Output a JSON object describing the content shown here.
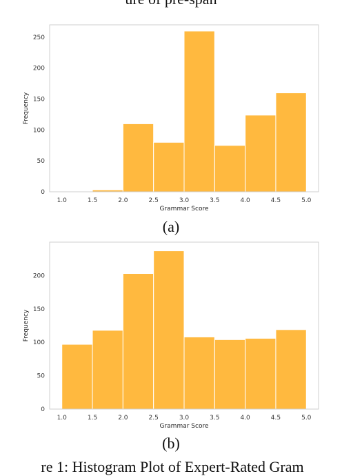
{
  "header_text": "ure of pre-span",
  "figure_caption": "re 1:  Histogram Plot of Expert-Rated Gram",
  "bar_color": "#FFB93F",
  "chart_data": [
    {
      "type": "bar",
      "panel_label": "(a)",
      "title": "",
      "xlabel": "Grammar Score",
      "ylabel": "Frequency",
      "bin_edges": [
        1.0,
        1.5,
        2.0,
        2.5,
        3.0,
        3.5,
        4.0,
        4.5,
        5.0
      ],
      "values": [
        1,
        3,
        110,
        80,
        260,
        75,
        124,
        160
      ],
      "xlim": [
        0.8,
        5.2
      ],
      "ylim": [
        0,
        270
      ],
      "xticks": [
        "1.0",
        "1.5",
        "2.0",
        "2.5",
        "3.0",
        "3.5",
        "4.0",
        "4.5",
        "5.0"
      ],
      "yticks": [
        "0",
        "50",
        "100",
        "150",
        "200",
        "250"
      ],
      "grid": false
    },
    {
      "type": "bar",
      "panel_label": "(b)",
      "title": "",
      "xlabel": "Grammar Score",
      "ylabel": "Frequency",
      "bin_edges": [
        1.0,
        1.5,
        2.0,
        2.5,
        3.0,
        3.5,
        4.0,
        4.5,
        5.0
      ],
      "values": [
        97,
        118,
        203,
        237,
        108,
        104,
        106,
        119
      ],
      "xlim": [
        0.8,
        5.2
      ],
      "ylim": [
        0,
        250
      ],
      "xticks": [
        "1.0",
        "1.5",
        "2.0",
        "2.5",
        "3.0",
        "3.5",
        "4.0",
        "4.5",
        "5.0"
      ],
      "yticks": [
        "0",
        "50",
        "100",
        "150",
        "200"
      ],
      "grid": false
    }
  ]
}
